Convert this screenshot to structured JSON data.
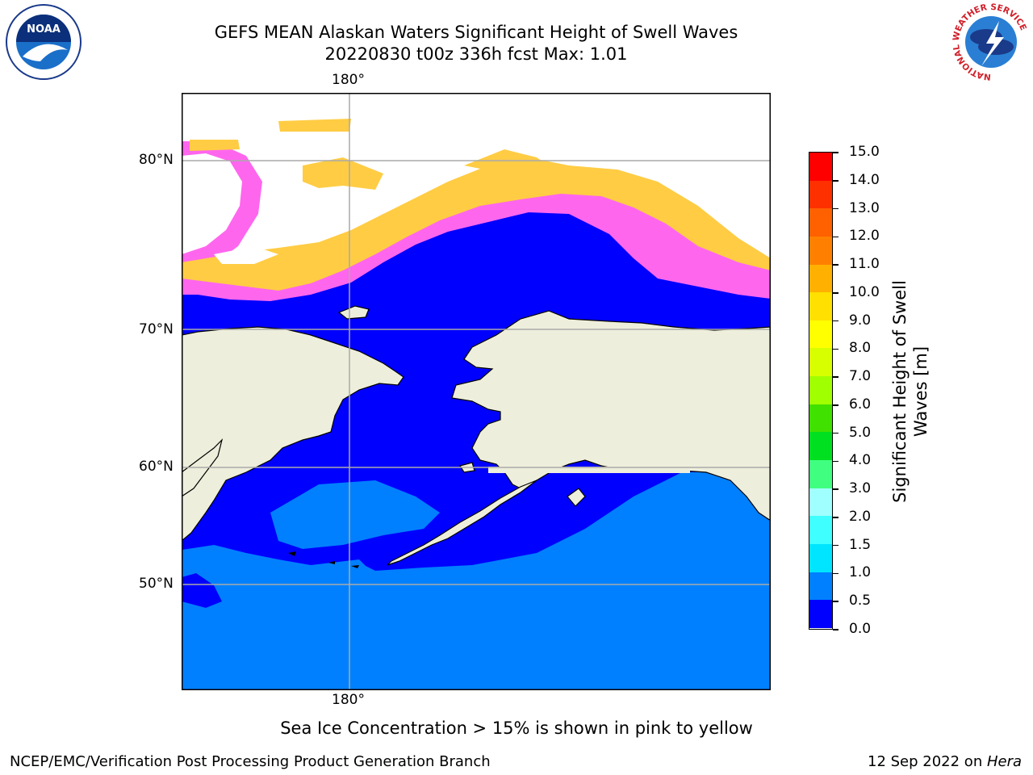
{
  "header": {
    "title_line1": "GEFS MEAN Alaskan Waters Significant Height of Swell Waves",
    "title_line2": "20220830 t00z 336h fcst   Max: 1.01"
  },
  "logos": {
    "left": "NOAA",
    "right_ring": "NATIONAL WEATHER SERVICE"
  },
  "map": {
    "lon_label_top": "180°",
    "lon_label_bottom": "180°",
    "lat_labels": [
      "80°N",
      "70°N",
      "60°N",
      "50°N"
    ],
    "colors": {
      "land": "#eeeedc",
      "ocean_low": "#0000ff",
      "ocean_mid": "#0080ff",
      "ice_pink": "#ff66ee",
      "ice_yellow": "#ffcc44",
      "grid": "#aaaaaa"
    }
  },
  "colorbar": {
    "label_line1": "Significant Height of Swell",
    "label_line2": "Waves [m]",
    "ticks": [
      "0.0",
      "0.5",
      "1.0",
      "1.5",
      "2.0",
      "3.0",
      "4.0",
      "5.0",
      "6.0",
      "7.0",
      "8.0",
      "9.0",
      "10.0",
      "11.0",
      "12.0",
      "13.0",
      "14.0",
      "15.0"
    ],
    "colors": [
      "#0000ff",
      "#0080ff",
      "#00e5ff",
      "#40ffff",
      "#a0ffff",
      "#40ff80",
      "#00e020",
      "#40e000",
      "#a0ff00",
      "#d8ff00",
      "#ffff00",
      "#ffe000",
      "#ffb000",
      "#ff8000",
      "#ff6000",
      "#ff3000",
      "#ff0000"
    ]
  },
  "caption": "Sea Ice Concentration > 15% is shown in pink to yellow",
  "footer": {
    "left": "NCEP/EMC/Verification Post Processing Product Generation Branch",
    "right_date": "12 Sep 2022 on ",
    "right_machine": "Hera"
  }
}
